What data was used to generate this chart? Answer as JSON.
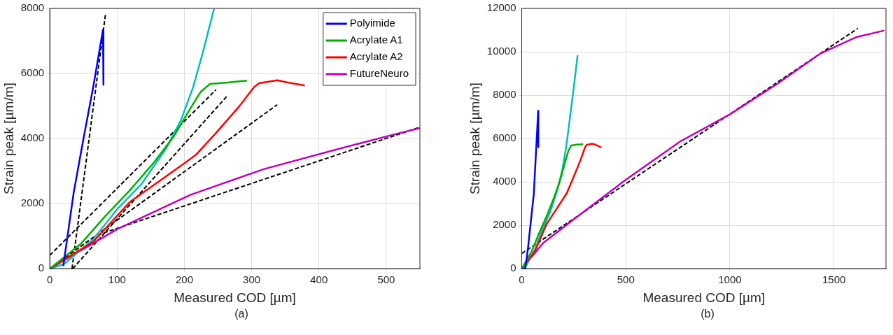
{
  "chart_data": [
    {
      "type": "line",
      "xlabel": "Measured COD [µm]",
      "ylabel": "Strain peak [µm/m]",
      "annotations": [
        "(a)"
      ],
      "xlim": [
        0,
        550
      ],
      "xticks": [
        0,
        100,
        200,
        300,
        400,
        500
      ],
      "ylim": [
        0,
        8000
      ],
      "yticks": [
        0,
        2000,
        4000,
        6000,
        8000
      ],
      "grid": true,
      "legend": "top right",
      "marker": "none",
      "series": [
        {
          "name": "Polyimide",
          "color": "#0000ff",
          "line_style": "solid",
          "x": [
            20,
            35.5,
            50,
            64.5,
            79,
            79.7
          ],
          "values": [
            80,
            2340,
            3990,
            5580,
            7340,
            5650
          ]
        },
        {
          "name": "Acrylate A1",
          "color": "#00b000",
          "line_style": "solid",
          "x": [
            0,
            46,
            82.6,
            119,
            155,
            184,
            209,
            224,
            238,
            264,
            293
          ],
          "values": [
            0,
            760,
            1620,
            2410,
            3270,
            4060,
            4930,
            5430,
            5680,
            5720,
            5780
          ]
        },
        {
          "name": "Acrylate A2",
          "color": "#ff0000",
          "line_style": "solid",
          "x": [
            0,
            64.5,
            119,
            173,
            216.7,
            245.6,
            282,
            303.6,
            311,
            338,
            354,
            379
          ],
          "values": [
            0,
            830,
            2050,
            2840,
            3490,
            4140,
            5000,
            5580,
            5700,
            5790,
            5720,
            5630
          ]
        },
        {
          "color": "#00bfbf",
          "line_style": "solid",
          "x": [
            0,
            21,
            64.5,
            100.7,
            137,
            173,
            195,
            213,
            227.5,
            244
          ],
          "values": [
            0,
            140,
            900,
            1840,
            2620,
            3700,
            4570,
            5580,
            6650,
            7980
          ]
        },
        {
          "name": "FutureNeuro",
          "color": "#bf00bf",
          "line_style": "solid",
          "x": [
            0,
            100.7,
            209,
            318,
            427,
            514,
            550
          ],
          "values": [
            0,
            1220,
            2270,
            3060,
            3670,
            4140,
            4320
          ]
        },
        {
          "color": "#000000",
          "line_style": "dashed",
          "x": [
            33,
            83
          ],
          "values": [
            0,
            7860
          ]
        },
        {
          "color": "#000000",
          "line_style": "dashed",
          "x": [
            0,
            247
          ],
          "values": [
            410,
            5500
          ]
        },
        {
          "color": "#000000",
          "line_style": "dashed",
          "x": [
            34,
            264
          ],
          "values": [
            0,
            5320
          ]
        },
        {
          "color": "#000000",
          "line_style": "dashed",
          "x": [
            0,
            338
          ],
          "values": [
            0,
            5040
          ]
        },
        {
          "color": "#000000",
          "line_style": "dashed",
          "x": [
            80,
            550
          ],
          "values": [
            1100,
            4350
          ]
        }
      ]
    },
    {
      "type": "line",
      "xlabel": "Measured COD [µm]",
      "ylabel": "Strain peak [µm/m]",
      "annotations": [
        "(b)"
      ],
      "xlim": [
        0,
        1750
      ],
      "xticks": [
        0,
        500,
        1000,
        1500
      ],
      "ylim": [
        0,
        12000
      ],
      "yticks": [
        0,
        2000,
        4000,
        6000,
        8000,
        10000,
        12000
      ],
      "grid": true,
      "marker": "none",
      "series": [
        {
          "color": "#0000ff",
          "line_style": "solid",
          "x": [
            0,
            17,
            29,
            58,
            79,
            79.7
          ],
          "values": [
            0,
            0,
            860,
            3450,
            7280,
            5610
          ]
        },
        {
          "color": "#00b000",
          "line_style": "solid",
          "x": [
            0,
            46,
            82.6,
            119,
            155,
            184,
            209,
            224,
            238,
            264,
            295
          ],
          "values": [
            0,
            760,
            1620,
            2410,
            3270,
            4060,
            4930,
            5430,
            5680,
            5720,
            5740
          ]
        },
        {
          "color": "#ff0000",
          "line_style": "solid",
          "x": [
            0,
            64.5,
            119,
            173,
            216.7,
            245.6,
            282,
            303.6,
            311,
            336,
            354,
            382
          ],
          "values": [
            0,
            830,
            2050,
            2840,
            3490,
            4140,
            5000,
            5580,
            5700,
            5760,
            5720,
            5590
          ]
        },
        {
          "color": "#00bfbf",
          "line_style": "solid",
          "x": [
            0,
            21,
            64.5,
            100.7,
            137,
            173,
            195,
            213,
            227.5,
            245.6,
            268.5
          ],
          "values": [
            0,
            140,
            900,
            1840,
            2620,
            3700,
            4570,
            5580,
            6650,
            8020,
            9840
          ]
        },
        {
          "color": "#bf00bf",
          "line_style": "solid",
          "x": [
            0,
            104,
            278,
            500,
            764,
            1001,
            1227,
            1435,
            1609,
            1742
          ],
          "values": [
            0,
            1190,
            2480,
            4100,
            5880,
            7120,
            8520,
            9920,
            10680,
            10980
          ]
        },
        {
          "color": "#000000",
          "line_style": "dashed",
          "x": [
            0,
            1615
          ],
          "values": [
            700,
            11080
          ]
        }
      ]
    }
  ]
}
